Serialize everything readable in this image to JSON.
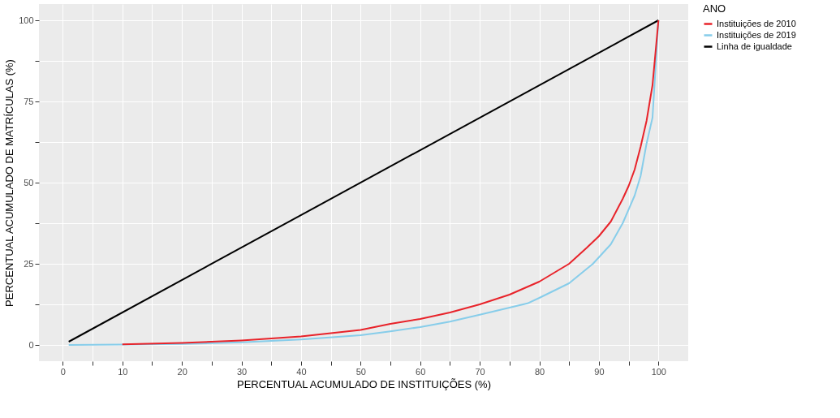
{
  "chart_data": {
    "type": "line",
    "xlabel": "PERCENTUAL ACUMULADO DE INSTITUIÇÕES (%)",
    "ylabel": "PERCENTUAL ACUMULADO DE MATRÍCULAS (%)",
    "legend_title": "ANO",
    "legend": "right",
    "grid": true,
    "line_style": "solid",
    "marker": "none",
    "xlim": [
      -4,
      105
    ],
    "ylim": [
      -5,
      105
    ],
    "xticks": [
      0,
      {
        "value": 5,
        "label": null
      },
      10,
      {
        "value": 15,
        "label": null
      },
      20,
      {
        "value": 25,
        "label": null
      },
      30,
      {
        "value": 35,
        "label": null
      },
      40,
      {
        "value": 45,
        "label": null
      },
      50,
      {
        "value": 55,
        "label": null
      },
      60,
      {
        "value": 65,
        "label": null
      },
      70,
      {
        "value": 75,
        "label": null
      },
      80,
      {
        "value": 85,
        "label": null
      },
      90,
      {
        "value": 95,
        "label": null
      },
      100
    ],
    "yticks": [
      0,
      {
        "value": 12.5,
        "label": null
      },
      25,
      {
        "value": 37.5,
        "label": null
      },
      50,
      {
        "value": 62.5,
        "label": null
      },
      75,
      {
        "value": 87.5,
        "label": null
      },
      100
    ],
    "series": [
      {
        "name": "Instituições de 2010",
        "color": "#e8232a",
        "x": [
          10,
          20,
          30,
          40,
          50,
          55,
          60,
          65,
          70,
          75,
          80,
          85,
          88,
          90,
          92,
          94,
          95,
          96,
          97,
          98,
          99,
          100
        ],
        "values": [
          0.2,
          0.6,
          1.4,
          2.6,
          4.6,
          6.5,
          8,
          10,
          12.5,
          15.5,
          19.5,
          25,
          30,
          33.5,
          38,
          45,
          49,
          54,
          61,
          69,
          80,
          100
        ]
      },
      {
        "name": "Instituições de 2019",
        "color": "#87cdea",
        "x": [
          1,
          10,
          20,
          30,
          40,
          50,
          55,
          60,
          65,
          70,
          75,
          78,
          80,
          85,
          89,
          92,
          94,
          96,
          97,
          98,
          99,
          100
        ],
        "values": [
          0,
          0.1,
          0.3,
          0.8,
          1.7,
          3,
          4.2,
          5.5,
          7.2,
          9.3,
          11.5,
          12.8,
          14.5,
          19,
          25,
          31,
          37.5,
          46,
          52,
          62,
          70,
          100
        ]
      },
      {
        "name": "Linha de igualdade",
        "color": "#000000",
        "x": [
          1,
          100
        ],
        "values": [
          1,
          100
        ]
      }
    ]
  }
}
